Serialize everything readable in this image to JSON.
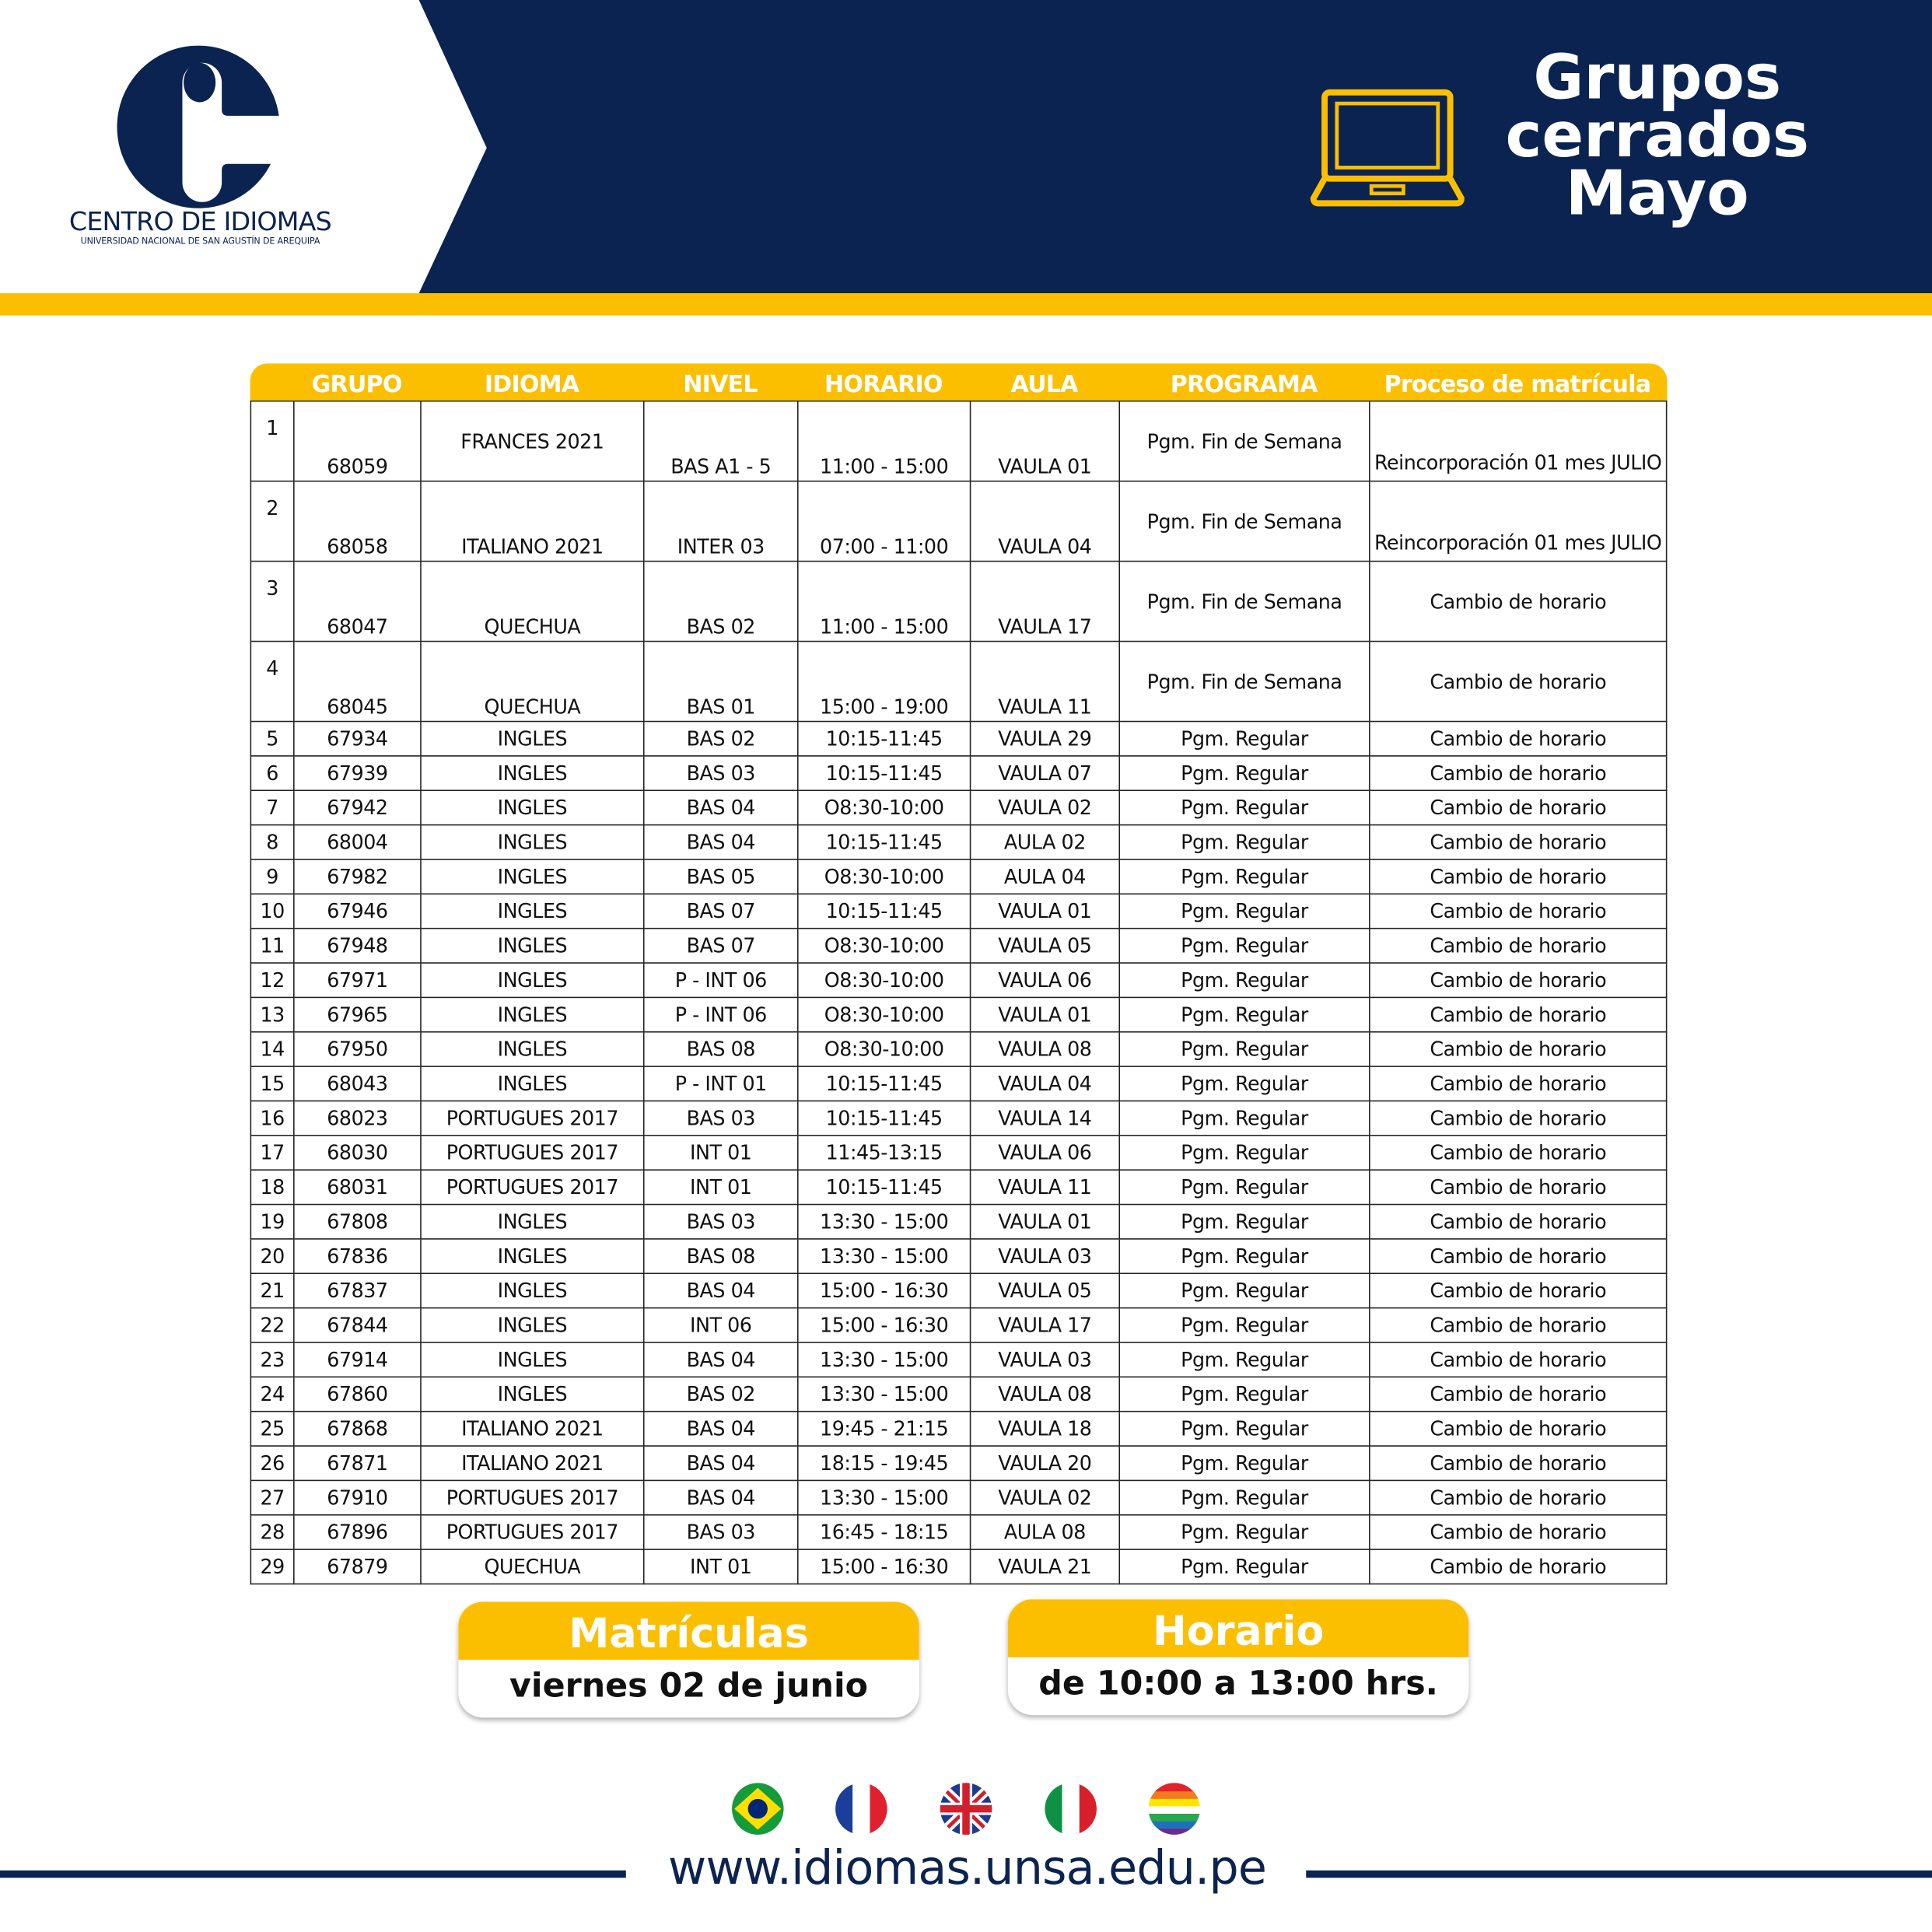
{
  "colors": {
    "navy": "#0b2350",
    "yellow": "#fbbf00"
  },
  "logo": {
    "title": "CENTRO DE IDIOMAS",
    "subtitle": "UNIVERSIDAD NACIONAL DE SAN AGUSTÍN DE AREQUIPA"
  },
  "header": {
    "icon": "laptop-icon",
    "title_lines": [
      "Grupos",
      "cerrados",
      "Mayo"
    ]
  },
  "table": {
    "headers": [
      "",
      "GRUPO",
      "IDIOMA",
      "NIVEL",
      "HORARIO",
      "AULA",
      "PROGRAMA",
      "Proceso de matrícula"
    ],
    "rows": [
      [
        "1",
        "68059",
        "FRANCES 2021",
        "BAS A1 - 5",
        "11:00 - 15:00",
        "VAULA 01",
        "Pgm. Fin de Semana",
        "Reincorporación 01 mes JULIO"
      ],
      [
        "2",
        "68058",
        "ITALIANO 2021",
        "INTER 03",
        "07:00 - 11:00",
        "VAULA 04",
        "Pgm. Fin de Semana",
        "Reincorporación 01 mes JULIO"
      ],
      [
        "3",
        "68047",
        "QUECHUA",
        "BAS 02",
        "11:00 - 15:00",
        "VAULA 17",
        "Pgm. Fin de Semana",
        "Cambio de horario"
      ],
      [
        "4",
        "68045",
        "QUECHUA",
        "BAS 01",
        "15:00 - 19:00",
        "VAULA 11",
        "Pgm. Fin de Semana",
        "Cambio de horario"
      ],
      [
        "5",
        "67934",
        "INGLES",
        "BAS 02",
        "10:15-11:45",
        "VAULA 29",
        "Pgm. Regular",
        "Cambio de horario"
      ],
      [
        "6",
        "67939",
        "INGLES",
        "BAS 03",
        "10:15-11:45",
        "VAULA 07",
        "Pgm. Regular",
        "Cambio de horario"
      ],
      [
        "7",
        "67942",
        "INGLES",
        "BAS 04",
        "O8:30-10:00",
        "VAULA 02",
        "Pgm. Regular",
        "Cambio de horario"
      ],
      [
        "8",
        "68004",
        "INGLES",
        "BAS 04",
        "10:15-11:45",
        "AULA 02",
        "Pgm. Regular",
        "Cambio de horario"
      ],
      [
        "9",
        "67982",
        "INGLES",
        "BAS 05",
        "O8:30-10:00",
        "AULA 04",
        "Pgm. Regular",
        "Cambio de horario"
      ],
      [
        "10",
        "67946",
        "INGLES",
        "BAS 07",
        "10:15-11:45",
        "VAULA 01",
        "Pgm. Regular",
        "Cambio de horario"
      ],
      [
        "11",
        "67948",
        "INGLES",
        "BAS 07",
        "O8:30-10:00",
        "VAULA 05",
        "Pgm. Regular",
        "Cambio de horario"
      ],
      [
        "12",
        "67971",
        "INGLES",
        "P - INT 06",
        "O8:30-10:00",
        "VAULA 06",
        "Pgm. Regular",
        "Cambio de horario"
      ],
      [
        "13",
        "67965",
        "INGLES",
        "P - INT 06",
        "O8:30-10:00",
        "VAULA 01",
        "Pgm. Regular",
        "Cambio de horario"
      ],
      [
        "14",
        "67950",
        "INGLES",
        "BAS 08",
        "O8:30-10:00",
        "VAULA 08",
        "Pgm. Regular",
        "Cambio de horario"
      ],
      [
        "15",
        "68043",
        "INGLES",
        "P - INT 01",
        "10:15-11:45",
        "VAULA 04",
        "Pgm. Regular",
        "Cambio de horario"
      ],
      [
        "16",
        "68023",
        "PORTUGUES 2017",
        "BAS 03",
        "10:15-11:45",
        "VAULA 14",
        "Pgm. Regular",
        "Cambio de horario"
      ],
      [
        "17",
        "68030",
        "PORTUGUES 2017",
        "INT 01",
        "11:45-13:15",
        "VAULA 06",
        "Pgm. Regular",
        "Cambio de horario"
      ],
      [
        "18",
        "68031",
        "PORTUGUES 2017",
        "INT 01",
        "10:15-11:45",
        "VAULA 11",
        "Pgm. Regular",
        "Cambio de horario"
      ],
      [
        "19",
        "67808",
        "INGLES",
        "BAS 03",
        "13:30 - 15:00",
        "VAULA 01",
        "Pgm. Regular",
        "Cambio de horario"
      ],
      [
        "20",
        "67836",
        "INGLES",
        "BAS 08",
        "13:30 - 15:00",
        "VAULA 03",
        "Pgm. Regular",
        "Cambio de horario"
      ],
      [
        "21",
        "67837",
        "INGLES",
        "BAS 04",
        "15:00 - 16:30",
        "VAULA 05",
        "Pgm. Regular",
        "Cambio de horario"
      ],
      [
        "22",
        "67844",
        "INGLES",
        "INT 06",
        "15:00 - 16:30",
        "VAULA 17",
        "Pgm. Regular",
        "Cambio de horario"
      ],
      [
        "23",
        "67914",
        "INGLES",
        "BAS 04",
        "13:30 - 15:00",
        "VAULA 03",
        "Pgm. Regular",
        "Cambio de horario"
      ],
      [
        "24",
        "67860",
        "INGLES",
        "BAS 02",
        "13:30 - 15:00",
        "VAULA 08",
        "Pgm. Regular",
        "Cambio de horario"
      ],
      [
        "25",
        "67868",
        "ITALIANO 2021",
        "BAS 04",
        "19:45 - 21:15",
        "VAULA 18",
        "Pgm. Regular",
        "Cambio de horario"
      ],
      [
        "26",
        "67871",
        "ITALIANO 2021",
        "BAS 04",
        "18:15 - 19:45",
        "VAULA 20",
        "Pgm. Regular",
        "Cambio de horario"
      ],
      [
        "27",
        "67910",
        "PORTUGUES 2017",
        "BAS 04",
        "13:30 - 15:00",
        "VAULA 02",
        "Pgm. Regular",
        "Cambio de horario"
      ],
      [
        "28",
        "67896",
        "PORTUGUES 2017",
        "BAS 03",
        "16:45 - 18:15",
        "AULA 08",
        "Pgm. Regular",
        "Cambio de horario"
      ],
      [
        "29",
        "67879",
        "QUECHUA",
        "INT 01",
        "15:00 - 16:30",
        "VAULA 21",
        "Pgm. Regular",
        "Cambio de horario"
      ]
    ]
  },
  "matriculas": {
    "title": "Matrículas",
    "value": "viernes 02 de junio"
  },
  "horario": {
    "title": "Horario",
    "value": "de 10:00 a 13:00 hrs."
  },
  "flags": [
    "brazil-flag-icon",
    "france-flag-icon",
    "uk-flag-icon",
    "italy-flag-icon",
    "rainbow-flag-icon"
  ],
  "footer": {
    "url": "www.idiomas.unsa.edu.pe"
  }
}
